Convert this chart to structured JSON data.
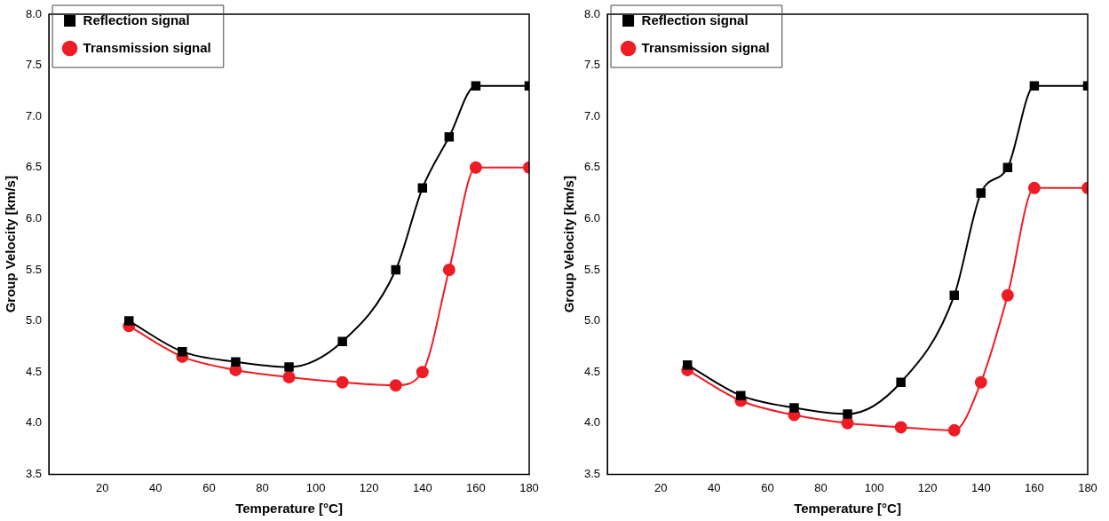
{
  "chart_data": [
    {
      "type": "line",
      "xlabel": "Temperature [°C]",
      "ylabel": "Group Velocity [km/s]",
      "x": [
        30,
        50,
        70,
        90,
        110,
        130,
        140,
        150,
        160,
        180
      ],
      "series": [
        {
          "name": "Reflection signal",
          "color": "#000000",
          "marker": "square",
          "values": [
            5.0,
            4.7,
            4.6,
            4.55,
            4.8,
            5.5,
            6.3,
            6.8,
            7.3,
            7.3
          ]
        },
        {
          "name": "Transmission signal",
          "color": "#ee1c24",
          "marker": "circle",
          "values": [
            4.95,
            4.65,
            4.52,
            4.45,
            4.4,
            4.37,
            4.5,
            5.5,
            6.5,
            6.5
          ]
        }
      ],
      "xlim": [
        0,
        180
      ],
      "xticks": [
        20,
        40,
        60,
        80,
        100,
        120,
        140,
        160,
        180
      ],
      "ylim": [
        3.5,
        8.0
      ],
      "yticks": [
        3.5,
        {
          "value": 4,
          "label": "4.0"
        },
        4.5,
        {
          "value": 5,
          "label": "5.0"
        },
        5.5,
        {
          "value": 6,
          "label": "6.0"
        },
        6.5,
        {
          "value": 7,
          "label": "7.0"
        },
        7.5,
        {
          "value": 8,
          "label": "8.0"
        }
      ],
      "grid": false,
      "legend": "top left"
    },
    {
      "type": "line",
      "xlabel": "Temperature [°C]",
      "ylabel": "Group Velocity [km/s]",
      "x": [
        30,
        50,
        70,
        90,
        110,
        130,
        140,
        150,
        160,
        180
      ],
      "series": [
        {
          "name": "Reflection signal",
          "color": "#000000",
          "marker": "square",
          "values": [
            4.57,
            4.27,
            4.15,
            4.09,
            4.4,
            5.25,
            6.25,
            6.5,
            7.3,
            7.3
          ]
        },
        {
          "name": "Transmission signal",
          "color": "#ee1c24",
          "marker": "circle",
          "values": [
            4.52,
            4.22,
            4.08,
            4.0,
            3.96,
            3.93,
            4.4,
            5.25,
            6.3,
            6.3
          ]
        }
      ],
      "xlim": [
        0,
        180
      ],
      "xticks": [
        20,
        40,
        60,
        80,
        100,
        120,
        140,
        160,
        180
      ],
      "ylim": [
        3.5,
        8.0
      ],
      "yticks": [
        3.5,
        {
          "value": 4,
          "label": "4.0"
        },
        4.5,
        {
          "value": 5,
          "label": "5.0"
        },
        5.5,
        {
          "value": 6,
          "label": "6.0"
        },
        6.5,
        {
          "value": 7,
          "label": "7.0"
        },
        7.5,
        {
          "value": 8,
          "label": "8.0"
        }
      ],
      "grid": false,
      "legend": "top left"
    }
  ]
}
